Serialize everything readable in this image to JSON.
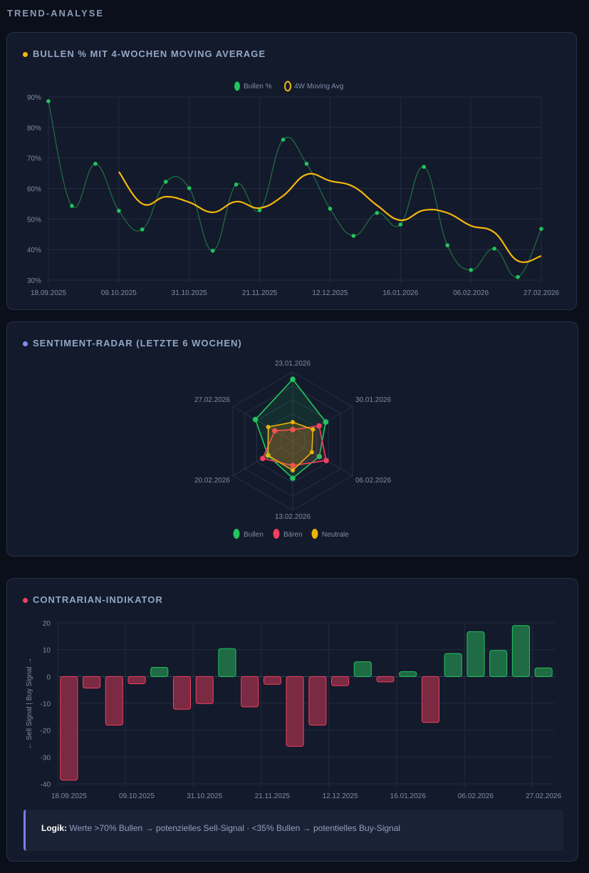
{
  "section_title": "TREND-ANALYSE",
  "colors": {
    "bull": "#22c55e",
    "bear": "#f43f5e",
    "neutral": "#eab308",
    "ma": "#f5b70b",
    "radar_dot": "#818cf8",
    "logic_accent": "#7b7ef0"
  },
  "trend_card": {
    "title": "BULLEN % MIT 4-WOCHEN MOVING AVERAGE"
  },
  "radar_card": {
    "title": "SENTIMENT-RADAR (LETZTE 6 WOCHEN)"
  },
  "contrarian_card": {
    "title": "CONTRARIAN-INDIKATOR",
    "logic_label": "Logik:",
    "logic_text": "Werte >70% Bullen → potenzielles Sell-Signal · <35% Bullen → potentielles Buy-Signal"
  },
  "chart_data": [
    {
      "type": "line",
      "title": "BULLEN % MIT 4-WOCHEN MOVING AVERAGE",
      "categories": [
        "18.09.2025",
        "",
        "",
        "09.10.2025",
        "",
        "",
        "31.10.2025",
        "",
        "",
        "21.11.2025",
        "",
        "",
        "12.12.2025",
        "",
        "",
        "16.01.2026",
        "",
        "",
        "06.02.2026",
        "",
        "",
        "27.02.2026"
      ],
      "ylim": [
        30,
        90
      ],
      "yticks": [
        "30%",
        "40%",
        "50%",
        "60%",
        "70%",
        "80%",
        "90%"
      ],
      "legend": "top-center",
      "series": [
        {
          "name": "Bullen %",
          "values": [
            88.6,
            54.3,
            68.1,
            52.7,
            46.6,
            62.2,
            60.1,
            39.6,
            61.3,
            52.9,
            76.0,
            68.1,
            53.4,
            44.5,
            52.0,
            48.2,
            67.1,
            41.4,
            33.3,
            40.3,
            31.0,
            46.8
          ]
        },
        {
          "name": "4W Moving Avg",
          "values": [
            null,
            null,
            null,
            65.5,
            55.0,
            57.3,
            55.5,
            52.2,
            55.7,
            53.6,
            57.6,
            64.6,
            62.5,
            60.6,
            54.5,
            49.6,
            52.9,
            52.0,
            47.8,
            45.6,
            36.3,
            37.9
          ]
        }
      ]
    },
    {
      "type": "radar",
      "title": "SENTIMENT-RADAR (LETZTE 6 WOCHEN)",
      "categories": [
        "23.01.2026",
        "30.01.2026",
        "06.02.2026",
        "13.02.2026",
        "20.02.2026",
        "27.02.2026"
      ],
      "rmax": 75,
      "legend": "bottom",
      "series": [
        {
          "name": "Bullen",
          "values": [
            67.1,
            41.4,
            33.3,
            40.3,
            31.0,
            46.8
          ]
        },
        {
          "name": "Bären",
          "values": [
            12.4,
            33.0,
            42.0,
            26.5,
            37.6,
            22.5
          ]
        },
        {
          "name": "Neutrale",
          "values": [
            20.6,
            25.4,
            24.0,
            31.7,
            31.0,
            30.7
          ]
        }
      ]
    },
    {
      "type": "bar",
      "title": "CONTRARIAN-INDIKATOR",
      "ylabel": "← Sell Signal | Buy Signal →",
      "categories": [
        "18.09.2025",
        "",
        "",
        "09.10.2025",
        "",
        "",
        "31.10.2025",
        "",
        "",
        "21.11.2025",
        "",
        "",
        "12.12.2025",
        "",
        "",
        "16.01.2026",
        "",
        "",
        "06.02.2026",
        "",
        "",
        "27.02.2026"
      ],
      "ylim": [
        -40,
        20
      ],
      "yticks": [
        "-40",
        "-30",
        "-20",
        "-10",
        "0",
        "10",
        "20"
      ],
      "values": [
        -38.6,
        -4.3,
        -18.1,
        -2.7,
        3.4,
        -12.2,
        -10.1,
        10.4,
        -11.3,
        -2.9,
        -26.0,
        -18.1,
        -3.4,
        5.5,
        -2.0,
        1.8,
        -17.1,
        8.6,
        16.7,
        9.7,
        19.0,
        3.2
      ]
    }
  ]
}
